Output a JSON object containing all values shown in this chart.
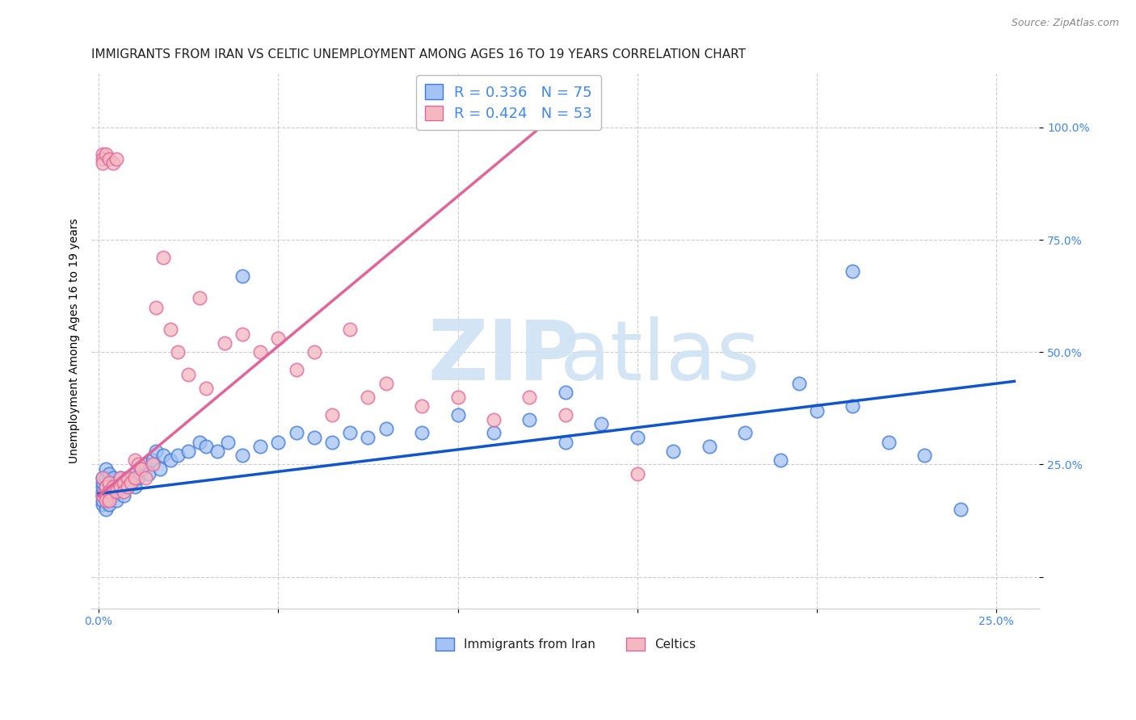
{
  "title": "IMMIGRANTS FROM IRAN VS CELTIC UNEMPLOYMENT AMONG AGES 16 TO 19 YEARS CORRELATION CHART",
  "source": "Source: ZipAtlas.com",
  "ylabel": "Unemployment Among Ages 16 to 19 years",
  "xlim": [
    -0.002,
    0.262
  ],
  "ylim": [
    -0.07,
    1.12
  ],
  "x_ticks": [
    0.0,
    0.05,
    0.1,
    0.15,
    0.2,
    0.25
  ],
  "x_tick_labels": [
    "0.0%",
    "",
    "",
    "",
    "",
    "25.0%"
  ],
  "y_ticks": [
    0.0,
    0.25,
    0.5,
    0.75,
    1.0
  ],
  "y_tick_labels": [
    "",
    "25.0%",
    "50.0%",
    "75.0%",
    "100.0%"
  ],
  "blue_R": 0.336,
  "blue_N": 75,
  "pink_R": 0.424,
  "pink_N": 53,
  "blue_color": "#a4c2f4",
  "pink_color": "#f4b8c1",
  "blue_edge_color": "#3d78d8",
  "pink_edge_color": "#e06699",
  "blue_line_color": "#1155cc",
  "pink_line_color": "#e06699",
  "legend_label_blue": "Immigrants from Iran",
  "legend_label_pink": "Celtics",
  "bg_color": "#ffffff",
  "grid_color": "#cccccc",
  "axis_text_color": "#4285f4",
  "title_fontsize": 11,
  "source_fontsize": 9,
  "tick_fontsize": 10,
  "legend_fontsize": 13,
  "blue_trend": [
    0.0,
    0.185,
    0.255,
    0.435
  ],
  "pink_trend": [
    0.0,
    0.18,
    0.135,
    1.08
  ],
  "blue_x": [
    0.001,
    0.001,
    0.001,
    0.001,
    0.001,
    0.001,
    0.001,
    0.002,
    0.002,
    0.002,
    0.002,
    0.002,
    0.003,
    0.003,
    0.003,
    0.003,
    0.004,
    0.004,
    0.004,
    0.005,
    0.005,
    0.005,
    0.006,
    0.006,
    0.007,
    0.007,
    0.008,
    0.008,
    0.009,
    0.01,
    0.01,
    0.011,
    0.012,
    0.013,
    0.014,
    0.015,
    0.016,
    0.017,
    0.018,
    0.02,
    0.022,
    0.025,
    0.028,
    0.03,
    0.033,
    0.036,
    0.04,
    0.045,
    0.05,
    0.055,
    0.06,
    0.065,
    0.07,
    0.075,
    0.08,
    0.09,
    0.1,
    0.11,
    0.12,
    0.13,
    0.14,
    0.15,
    0.16,
    0.17,
    0.18,
    0.19,
    0.2,
    0.21,
    0.22,
    0.23,
    0.24,
    0.04,
    0.13,
    0.195,
    0.21
  ],
  "blue_y": [
    0.16,
    0.18,
    0.19,
    0.2,
    0.21,
    0.22,
    0.17,
    0.15,
    0.18,
    0.2,
    0.22,
    0.24,
    0.16,
    0.19,
    0.21,
    0.23,
    0.18,
    0.2,
    0.22,
    0.17,
    0.19,
    0.21,
    0.2,
    0.22,
    0.18,
    0.21,
    0.2,
    0.22,
    0.21,
    0.2,
    0.23,
    0.22,
    0.24,
    0.25,
    0.23,
    0.26,
    0.28,
    0.24,
    0.27,
    0.26,
    0.27,
    0.28,
    0.3,
    0.29,
    0.28,
    0.3,
    0.27,
    0.29,
    0.3,
    0.32,
    0.31,
    0.3,
    0.32,
    0.31,
    0.33,
    0.32,
    0.36,
    0.32,
    0.35,
    0.3,
    0.34,
    0.31,
    0.28,
    0.29,
    0.32,
    0.26,
    0.37,
    0.38,
    0.3,
    0.27,
    0.15,
    0.67,
    0.41,
    0.43,
    0.68
  ],
  "pink_x": [
    0.001,
    0.001,
    0.001,
    0.001,
    0.001,
    0.002,
    0.002,
    0.002,
    0.002,
    0.003,
    0.003,
    0.003,
    0.003,
    0.004,
    0.004,
    0.005,
    0.005,
    0.006,
    0.006,
    0.007,
    0.007,
    0.008,
    0.008,
    0.009,
    0.01,
    0.01,
    0.011,
    0.012,
    0.013,
    0.015,
    0.016,
    0.018,
    0.02,
    0.022,
    0.025,
    0.028,
    0.03,
    0.035,
    0.04,
    0.045,
    0.05,
    0.055,
    0.06,
    0.065,
    0.07,
    0.075,
    0.08,
    0.09,
    0.1,
    0.11,
    0.12,
    0.13,
    0.15
  ],
  "pink_y": [
    0.94,
    0.93,
    0.92,
    0.22,
    0.18,
    0.94,
    0.2,
    0.18,
    0.17,
    0.93,
    0.21,
    0.19,
    0.17,
    0.92,
    0.2,
    0.93,
    0.19,
    0.22,
    0.2,
    0.21,
    0.19,
    0.22,
    0.2,
    0.21,
    0.26,
    0.22,
    0.25,
    0.24,
    0.22,
    0.25,
    0.6,
    0.71,
    0.55,
    0.5,
    0.45,
    0.62,
    0.42,
    0.52,
    0.54,
    0.5,
    0.53,
    0.46,
    0.5,
    0.36,
    0.55,
    0.4,
    0.43,
    0.38,
    0.4,
    0.35,
    0.4,
    0.36,
    0.23
  ]
}
